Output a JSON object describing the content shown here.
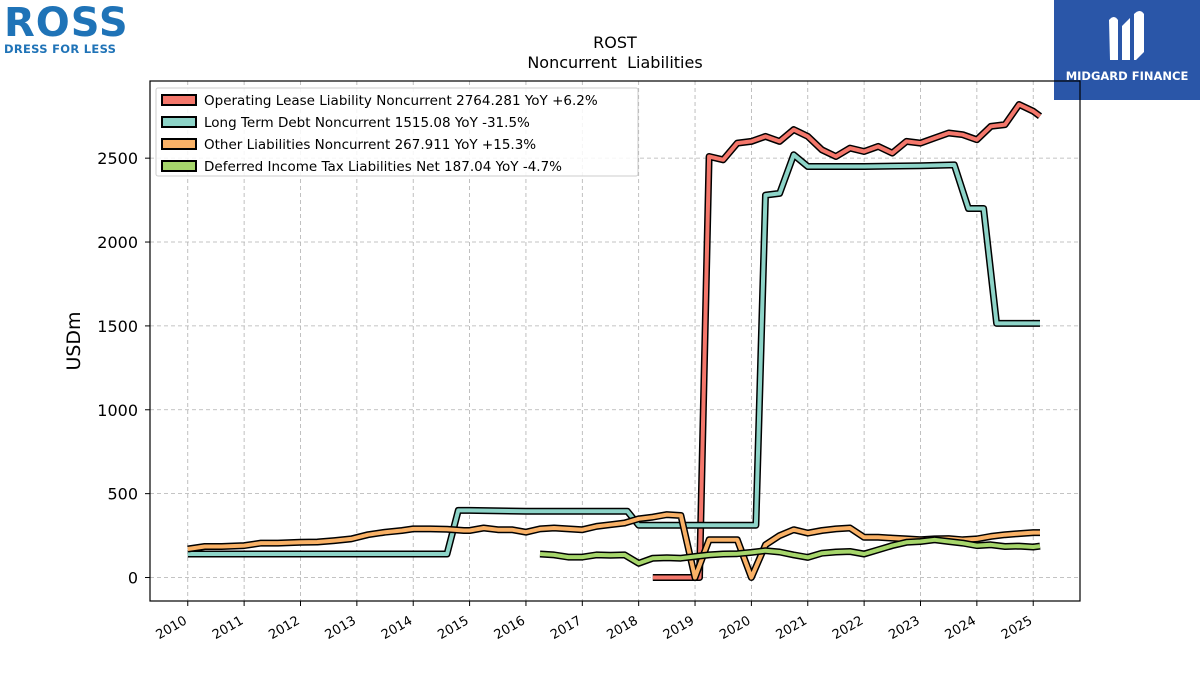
{
  "logos": {
    "left_brand": "ROSS",
    "left_tagline": "DRESS FOR LESS",
    "right_name": "MIDGARD FINANCE"
  },
  "chart_data": {
    "type": "line",
    "title": "ROST",
    "subtitle": "Noncurrent  Liabilities",
    "ylabel": "USDm",
    "xlabel": "",
    "x_ticks": [
      "2010",
      "2011",
      "2012",
      "2013",
      "2014",
      "2015",
      "2016",
      "2017",
      "2018",
      "2019",
      "2020",
      "2021",
      "2022",
      "2023",
      "2024",
      "2025"
    ],
    "y_ticks": [
      0,
      500,
      1000,
      1500,
      2000,
      2500
    ],
    "xlim": [
      2009.33,
      2025.83
    ],
    "ylim": [
      -140,
      2960
    ],
    "grid": true,
    "legend_position": "top-left",
    "series": [
      {
        "name": "Operating Lease Liability Noncurrent",
        "legend": "Operating Lease Liability Noncurrent  2764.281 YoY +6.2%",
        "color": "#f4776b",
        "points": [
          [
            2018.25,
            0
          ],
          [
            2018.5,
            0
          ],
          [
            2018.75,
            0
          ],
          [
            2019.0,
            0
          ],
          [
            2019.08,
            0
          ],
          [
            2019.25,
            2510
          ],
          [
            2019.5,
            2490
          ],
          [
            2019.75,
            2590
          ],
          [
            2020.0,
            2600
          ],
          [
            2020.25,
            2630
          ],
          [
            2020.5,
            2600
          ],
          [
            2020.75,
            2670
          ],
          [
            2021.0,
            2630
          ],
          [
            2021.25,
            2550
          ],
          [
            2021.5,
            2510
          ],
          [
            2021.75,
            2560
          ],
          [
            2022.0,
            2540
          ],
          [
            2022.25,
            2570
          ],
          [
            2022.5,
            2530
          ],
          [
            2022.75,
            2600
          ],
          [
            2023.0,
            2590
          ],
          [
            2023.25,
            2620
          ],
          [
            2023.5,
            2650
          ],
          [
            2023.75,
            2640
          ],
          [
            2024.0,
            2610
          ],
          [
            2024.25,
            2690
          ],
          [
            2024.5,
            2700
          ],
          [
            2024.75,
            2820
          ],
          [
            2025.0,
            2780
          ],
          [
            2025.12,
            2750
          ]
        ]
      },
      {
        "name": "Long Term Debt Noncurrent",
        "legend": "Long Term Debt Noncurrent  1515.08 YoY -31.5%",
        "color": "#8dd4c8",
        "points": [
          [
            2010.0,
            140
          ],
          [
            2011.0,
            140
          ],
          [
            2012.0,
            140
          ],
          [
            2013.0,
            140
          ],
          [
            2014.0,
            140
          ],
          [
            2014.6,
            140
          ],
          [
            2014.8,
            400
          ],
          [
            2015.0,
            400
          ],
          [
            2016.0,
            395
          ],
          [
            2017.0,
            395
          ],
          [
            2017.8,
            395
          ],
          [
            2018.0,
            312
          ],
          [
            2018.5,
            312
          ],
          [
            2019.0,
            312
          ],
          [
            2020.0,
            312
          ],
          [
            2020.08,
            312
          ],
          [
            2020.25,
            2280
          ],
          [
            2020.5,
            2290
          ],
          [
            2020.75,
            2520
          ],
          [
            2021.0,
            2450
          ],
          [
            2022.0,
            2450
          ],
          [
            2023.0,
            2455
          ],
          [
            2023.6,
            2460
          ],
          [
            2023.85,
            2200
          ],
          [
            2024.12,
            2200
          ],
          [
            2024.35,
            1515
          ],
          [
            2025.12,
            1515
          ]
        ]
      },
      {
        "name": "Other Liabilities Noncurrent",
        "legend": "Other Liabilities Noncurrent  267.911 YoY +15.3%",
        "color": "#f9b166",
        "points": [
          [
            2010.0,
            170
          ],
          [
            2010.3,
            185
          ],
          [
            2010.6,
            185
          ],
          [
            2011.0,
            190
          ],
          [
            2011.3,
            205
          ],
          [
            2011.6,
            205
          ],
          [
            2012.0,
            210
          ],
          [
            2012.3,
            212
          ],
          [
            2012.6,
            220
          ],
          [
            2012.9,
            230
          ],
          [
            2013.2,
            255
          ],
          [
            2013.5,
            270
          ],
          [
            2013.8,
            280
          ],
          [
            2014.0,
            290
          ],
          [
            2014.3,
            290
          ],
          [
            2014.6,
            288
          ],
          [
            2014.9,
            280
          ],
          [
            2015.0,
            280
          ],
          [
            2015.25,
            295
          ],
          [
            2015.5,
            285
          ],
          [
            2015.75,
            285
          ],
          [
            2016.0,
            270
          ],
          [
            2016.25,
            290
          ],
          [
            2016.5,
            295
          ],
          [
            2016.75,
            290
          ],
          [
            2017.0,
            285
          ],
          [
            2017.25,
            305
          ],
          [
            2017.5,
            315
          ],
          [
            2017.75,
            325
          ],
          [
            2018.0,
            350
          ],
          [
            2018.25,
            360
          ],
          [
            2018.5,
            375
          ],
          [
            2018.75,
            370
          ],
          [
            2019.0,
            0
          ],
          [
            2019.25,
            225
          ],
          [
            2019.5,
            225
          ],
          [
            2019.75,
            225
          ],
          [
            2020.0,
            0
          ],
          [
            2020.25,
            195
          ],
          [
            2020.5,
            250
          ],
          [
            2020.75,
            285
          ],
          [
            2021.0,
            265
          ],
          [
            2021.25,
            280
          ],
          [
            2021.5,
            290
          ],
          [
            2021.75,
            295
          ],
          [
            2022.0,
            240
          ],
          [
            2022.25,
            240
          ],
          [
            2022.5,
            235
          ],
          [
            2022.75,
            230
          ],
          [
            2023.0,
            225
          ],
          [
            2023.25,
            230
          ],
          [
            2023.5,
            232
          ],
          [
            2023.75,
            225
          ],
          [
            2024.0,
            230
          ],
          [
            2024.25,
            245
          ],
          [
            2024.5,
            255
          ],
          [
            2024.75,
            262
          ],
          [
            2025.0,
            268
          ],
          [
            2025.12,
            268
          ]
        ]
      },
      {
        "name": "Deferred Income Tax Liabilities Net",
        "legend": "Deferred Income Tax Liabilities Net  187.04 YoY -4.7%",
        "color": "#a6d66b",
        "points": [
          [
            2016.25,
            140
          ],
          [
            2016.5,
            135
          ],
          [
            2016.75,
            122
          ],
          [
            2017.0,
            122
          ],
          [
            2017.25,
            135
          ],
          [
            2017.5,
            133
          ],
          [
            2017.75,
            135
          ],
          [
            2018.0,
            85
          ],
          [
            2018.25,
            115
          ],
          [
            2018.5,
            118
          ],
          [
            2018.75,
            115
          ],
          [
            2019.0,
            125
          ],
          [
            2019.25,
            135
          ],
          [
            2019.5,
            140
          ],
          [
            2019.75,
            142
          ],
          [
            2020.0,
            150
          ],
          [
            2020.25,
            160
          ],
          [
            2020.5,
            152
          ],
          [
            2020.75,
            135
          ],
          [
            2021.0,
            120
          ],
          [
            2021.25,
            145
          ],
          [
            2021.5,
            152
          ],
          [
            2021.75,
            155
          ],
          [
            2022.0,
            140
          ],
          [
            2022.25,
            165
          ],
          [
            2022.5,
            190
          ],
          [
            2022.75,
            210
          ],
          [
            2023.0,
            215
          ],
          [
            2023.25,
            225
          ],
          [
            2023.5,
            215
          ],
          [
            2023.75,
            205
          ],
          [
            2024.0,
            190
          ],
          [
            2024.25,
            195
          ],
          [
            2024.5,
            185
          ],
          [
            2024.75,
            187
          ],
          [
            2025.0,
            182
          ],
          [
            2025.12,
            187
          ]
        ]
      }
    ]
  }
}
